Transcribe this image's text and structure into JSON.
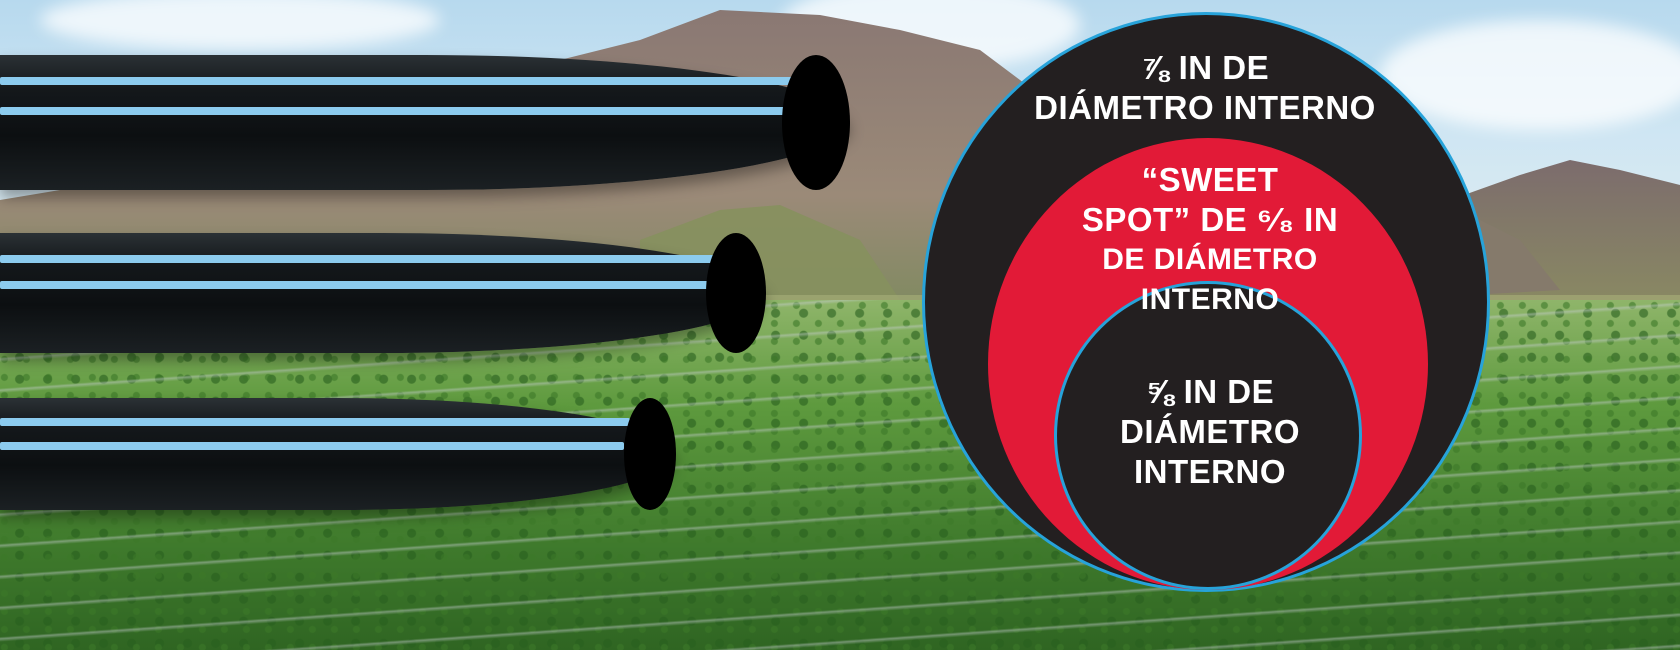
{
  "scene": {
    "background": "mountains-and-strawberry-field-photo",
    "pipes": [
      "pipe-large",
      "pipe-medium",
      "pipe-small"
    ]
  },
  "colors": {
    "pipe_stripe": "#8ccbee",
    "circle_dark": "#231f20",
    "circle_red": "#e21a37",
    "circle_border": "#27a3da",
    "text": "#ffffff"
  },
  "labels": {
    "outer": {
      "line1": "⅞ IN DE",
      "line2": "DIÁMETRO INTERNO"
    },
    "middle": {
      "line1": "“SWEET",
      "line2": "SPOT” DE ⁶⁄₈ IN",
      "line3": "DE DIÁMETRO INTERNO"
    },
    "inner": {
      "line1": "⅝ IN DE",
      "line2": "DIÁMETRO",
      "line3": "INTERNO"
    }
  }
}
